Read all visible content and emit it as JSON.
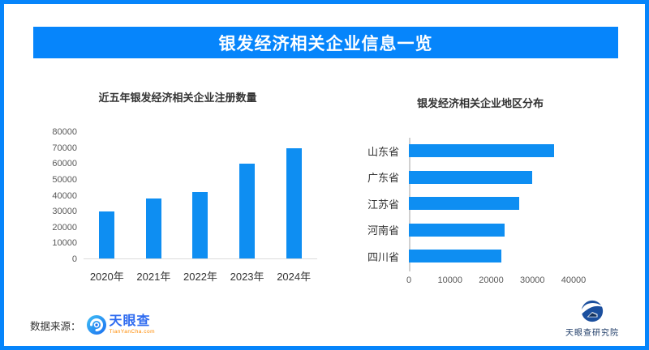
{
  "header": {
    "title": "银发经济相关企业信息一览"
  },
  "colors": {
    "primary_blue": "#0685fb",
    "bar_blue": "#0e8ef2",
    "title_text": "#333333",
    "axis_text": "#595959"
  },
  "chart_data": [
    {
      "type": "bar",
      "orientation": "vertical",
      "title": "近五年银发经济相关企业注册数量",
      "categories": [
        "2020年",
        "2021年",
        "2022年",
        "2023年",
        "2024年"
      ],
      "values": [
        29600,
        37800,
        42000,
        59500,
        69400
      ],
      "xlabel": "",
      "ylabel": "",
      "ylim": [
        0,
        80000
      ],
      "yticks": [
        0,
        10000,
        20000,
        30000,
        40000,
        50000,
        60000,
        70000,
        80000
      ],
      "grid": false,
      "legend": false,
      "bar_color": "#0e8ef2"
    },
    {
      "type": "bar",
      "orientation": "horizontal",
      "title": "银发经济相关企业地区分布",
      "categories": [
        "山东省",
        "广东省",
        "江苏省",
        "河南省",
        "四川省"
      ],
      "values": [
        35300,
        30000,
        26700,
        23300,
        22500
      ],
      "xlabel": "",
      "ylabel": "",
      "xlim": [
        0,
        45000
      ],
      "xticks": [
        0,
        10000,
        20000,
        30000,
        40000
      ],
      "grid": false,
      "legend": false,
      "bar_color": "#0e8ef2"
    }
  ],
  "footer": {
    "source_label": "数据来源：",
    "tianyancha_logo": {
      "name": "天眼查",
      "domain": "TianYanCha.com"
    },
    "institute_logo": {
      "name": "天眼查研究院"
    }
  }
}
